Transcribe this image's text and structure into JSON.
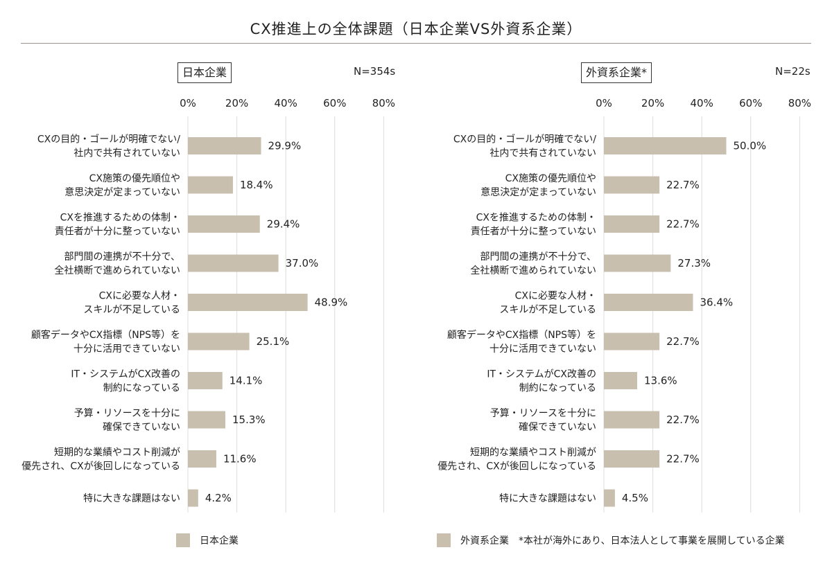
{
  "title": "CX推進上の全体課題（日本企業VS外資系企業）",
  "colors": {
    "bar": "#c8bfae",
    "grid": "#dcdcdc",
    "rule": "#9a948a"
  },
  "panels": [
    {
      "label": "日本企業",
      "n": "N=354s"
    },
    {
      "label": "外資系企業*",
      "n": "N=22s"
    }
  ],
  "legend": [
    {
      "label": "日本企業"
    },
    {
      "label": "外資系企業　*本社が海外にあり、日本法人として事業を展開している企業"
    }
  ],
  "chart_data": [
    {
      "type": "bar",
      "orientation": "horizontal",
      "title": "日本企業",
      "categories": [
        [
          "CXの目的・ゴールが明確でない/",
          "社内で共有されていない"
        ],
        [
          "CX施策の優先順位や",
          "意思決定が定まっていない"
        ],
        [
          "CXを推進するための体制・",
          "責任者が十分に整っていない"
        ],
        [
          "部門間の連携が不十分で、",
          "全社横断で進められていない"
        ],
        [
          "CXに必要な人材・",
          "スキルが不足している"
        ],
        [
          "顧客データやCX指標（NPS等）を",
          "十分に活用できていない"
        ],
        [
          "IT・システムがCX改善の",
          "制約になっている"
        ],
        [
          "予算・リソースを十分に",
          "確保できていない"
        ],
        [
          "短期的な業績やコスト削減が",
          "優先され、CXが後回しになっている"
        ],
        [
          "特に大きな課題はない"
        ]
      ],
      "values": [
        29.9,
        18.4,
        29.4,
        37.0,
        48.9,
        25.1,
        14.1,
        15.3,
        11.6,
        4.2
      ],
      "value_labels": [
        "29.9%",
        "18.4%",
        "29.4%",
        "37.0%",
        "48.9%",
        "25.1%",
        "14.1%",
        "15.3%",
        "11.6%",
        "4.2%"
      ],
      "xlim": [
        0,
        80
      ],
      "ticks": [
        "0%",
        "20%",
        "40%",
        "60%",
        "80%"
      ],
      "grid": true
    },
    {
      "type": "bar",
      "orientation": "horizontal",
      "title": "外資系企業*",
      "categories": [
        [
          "CXの目的・ゴールが明確でない/",
          "社内で共有されていない"
        ],
        [
          "CX施策の優先順位や",
          "意思決定が定まっていない"
        ],
        [
          "CXを推進するための体制・",
          "責任者が十分に整っていない"
        ],
        [
          "部門間の連携が不十分で、",
          "全社横断で進められていない"
        ],
        [
          "CXに必要な人材・",
          "スキルが不足している"
        ],
        [
          "顧客データやCX指標（NPS等）を",
          "十分に活用できていない"
        ],
        [
          "IT・システムがCX改善の",
          "制約になっている"
        ],
        [
          "予算・リソースを十分に",
          "確保できていない"
        ],
        [
          "短期的な業績やコスト削減が",
          "優先され、CXが後回しになっている"
        ],
        [
          "特に大きな課題はない"
        ]
      ],
      "values": [
        50.0,
        22.7,
        22.7,
        27.3,
        36.4,
        22.7,
        13.6,
        22.7,
        22.7,
        4.5
      ],
      "value_labels": [
        "50.0%",
        "22.7%",
        "22.7%",
        "27.3%",
        "36.4%",
        "22.7%",
        "13.6%",
        "22.7%",
        "22.7%",
        "4.5%"
      ],
      "xlim": [
        0,
        80
      ],
      "ticks": [
        "0%",
        "20%",
        "40%",
        "60%",
        "80%"
      ],
      "grid": true
    }
  ]
}
